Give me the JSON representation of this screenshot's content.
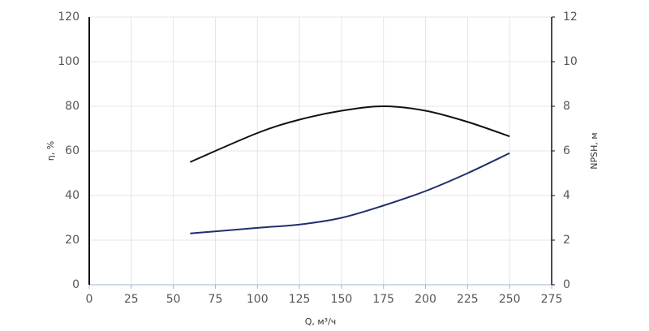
{
  "chart_data": {
    "type": "line",
    "x_label": "Q, м³/ч",
    "y_label": "η, %",
    "y2_label": "NPSH, м",
    "x": [
      60,
      100,
      125,
      150,
      175,
      200,
      225,
      250
    ],
    "series": [
      {
        "color": "#111111",
        "values": [
          55,
          68,
          74,
          78,
          80,
          78,
          73,
          66.5
        ]
      },
      {
        "color": "#1f2f6e",
        "axis": "y2",
        "values": [
          2.3,
          2.55,
          2.7,
          3.0,
          3.55,
          4.2,
          5.0,
          5.9
        ]
      }
    ],
    "xlim": [
      0,
      275
    ],
    "xticks": [
      0,
      25,
      50,
      75,
      100,
      125,
      150,
      175,
      200,
      225,
      250,
      275
    ],
    "ylim": [
      0,
      120
    ],
    "yticks": [
      0,
      20,
      40,
      60,
      80,
      100,
      120
    ],
    "y2lim": [
      0,
      12
    ],
    "y2ticks": [
      0,
      2,
      4,
      6,
      8,
      10,
      12
    ],
    "grid": true
  }
}
